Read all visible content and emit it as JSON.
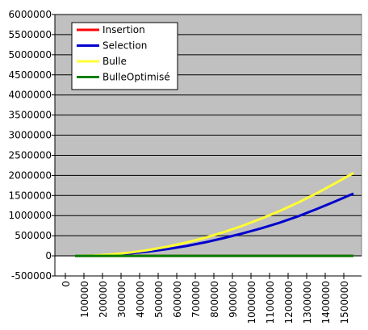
{
  "chart_data": {
    "type": "line",
    "title": "",
    "xlabel": "",
    "ylabel": "",
    "x": [
      0,
      100000,
      200000,
      300000,
      400000,
      500000,
      600000,
      700000,
      800000,
      900000,
      1000000,
      1100000,
      1200000,
      1300000,
      1400000,
      1500000
    ],
    "x_tick_labels": [
      "0",
      "100000",
      "200000",
      "300000",
      "400000",
      "500000",
      "600000",
      "700000",
      "800000",
      "900000",
      "1000000",
      "1100000",
      "1200000",
      "1300000",
      "1400000",
      "1500000"
    ],
    "ylim": [
      -500000,
      6000000
    ],
    "y_ticks": [
      -500000,
      0,
      500000,
      1000000,
      1500000,
      2000000,
      2500000,
      3000000,
      3500000,
      4000000,
      4500000,
      5000000,
      5500000,
      6000000
    ],
    "y_tick_labels": [
      "-500000",
      "0",
      "500000",
      "1000000",
      "1500000",
      "2000000",
      "2500000",
      "3000000",
      "3500000",
      "4000000",
      "4500000",
      "5000000",
      "5500000",
      "6000000"
    ],
    "grid": "horizontal",
    "plot_background": "#c0c0c0",
    "legend_position": "top-left",
    "series": [
      {
        "name": "Insertion",
        "color": "#ff0000",
        "values": [
          0,
          0,
          0,
          0,
          0,
          0,
          0,
          0,
          0,
          0,
          0,
          0,
          0,
          0,
          0,
          0
        ]
      },
      {
        "name": "Selection",
        "color": "#0000cc",
        "values": [
          0,
          7000,
          28000,
          62000,
          110000,
          170000,
          245000,
          335000,
          440000,
          555000,
          680000,
          820000,
          980000,
          1160000,
          1350000,
          1550000
        ]
      },
      {
        "name": "Bulle",
        "color": "#ffff33",
        "values": [
          0,
          9000,
          37000,
          83000,
          147000,
          230000,
          331000,
          450000,
          588000,
          744000,
          920000,
          1110000,
          1320000,
          1550000,
          1800000,
          2060000
        ]
      },
      {
        "name": "BulleOptimisé",
        "color": "#008000",
        "values": [
          0,
          0,
          0,
          0,
          0,
          0,
          0,
          0,
          0,
          0,
          0,
          0,
          0,
          0,
          0,
          0
        ]
      }
    ]
  }
}
